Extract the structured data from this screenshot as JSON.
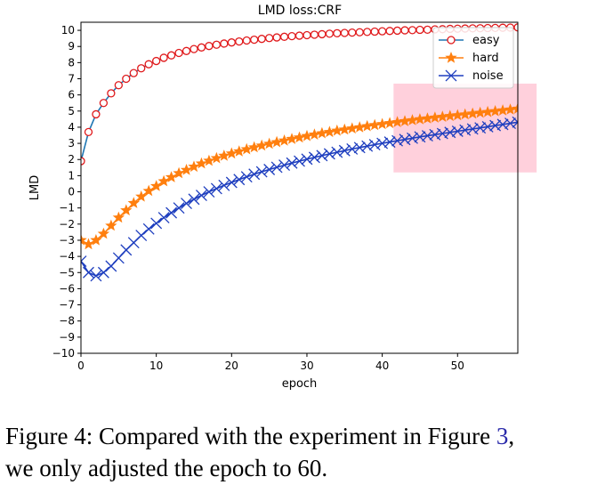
{
  "chart_data": {
    "type": "line",
    "title": "LMD loss:CRF",
    "xlabel": "epoch",
    "ylabel": "LMD",
    "xlim": [
      0,
      58
    ],
    "ylim": [
      -10,
      10.5
    ],
    "xticks": [
      0,
      10,
      20,
      30,
      40,
      50
    ],
    "yticks": [
      -10,
      -9,
      -8,
      -7,
      -6,
      -5,
      -4,
      -3,
      -2,
      -1,
      0,
      1,
      2,
      3,
      4,
      5,
      6,
      7,
      8,
      9,
      10
    ],
    "grid": false,
    "legend_position": "top-right",
    "highlight_region": {
      "x": [
        41.5,
        60.5
      ],
      "y": [
        1.2,
        6.7
      ],
      "color": "#ffd0dc"
    },
    "series": [
      {
        "name": "easy",
        "color": "#e0191b",
        "line_color": "#1f77b4",
        "marker": "circle",
        "values": [
          1.9,
          3.7,
          4.8,
          5.5,
          6.1,
          6.6,
          7.0,
          7.35,
          7.65,
          7.9,
          8.1,
          8.3,
          8.45,
          8.6,
          8.72,
          8.84,
          8.94,
          9.03,
          9.11,
          9.18,
          9.25,
          9.31,
          9.37,
          9.42,
          9.47,
          9.52,
          9.56,
          9.6,
          9.64,
          9.67,
          9.7,
          9.73,
          9.76,
          9.79,
          9.82,
          9.84,
          9.86,
          9.88,
          9.9,
          9.92,
          9.94,
          9.96,
          9.98,
          10.0,
          10.01,
          10.03,
          10.04,
          10.06,
          10.07,
          10.09,
          10.1,
          10.11,
          10.12,
          10.13,
          10.14,
          10.15,
          10.16,
          10.17,
          10.18
        ]
      },
      {
        "name": "hard",
        "color": "#ff7f0e",
        "line_color": "#ff7f0e",
        "marker": "star",
        "values": [
          -3.0,
          -3.25,
          -3.0,
          -2.6,
          -2.1,
          -1.6,
          -1.15,
          -0.7,
          -0.3,
          0.05,
          0.35,
          0.65,
          0.9,
          1.15,
          1.35,
          1.55,
          1.75,
          1.92,
          2.08,
          2.23,
          2.37,
          2.5,
          2.63,
          2.75,
          2.86,
          2.97,
          3.07,
          3.17,
          3.27,
          3.36,
          3.45,
          3.54,
          3.62,
          3.7,
          3.78,
          3.85,
          3.92,
          3.99,
          4.06,
          4.13,
          4.19,
          4.25,
          4.31,
          4.37,
          4.43,
          4.49,
          4.54,
          4.59,
          4.64,
          4.69,
          4.74,
          4.79,
          4.84,
          4.89,
          4.94,
          4.99,
          5.04,
          5.09,
          5.14
        ]
      },
      {
        "name": "noise",
        "color": "#1f3fbf",
        "line_color": "#1f3fbf",
        "marker": "x",
        "values": [
          -4.3,
          -5.0,
          -5.2,
          -5.0,
          -4.6,
          -4.1,
          -3.6,
          -3.15,
          -2.7,
          -2.3,
          -1.95,
          -1.6,
          -1.3,
          -1.0,
          -0.72,
          -0.46,
          -0.22,
          0.0,
          0.2,
          0.4,
          0.58,
          0.76,
          0.93,
          1.09,
          1.24,
          1.38,
          1.52,
          1.65,
          1.78,
          1.9,
          2.02,
          2.13,
          2.24,
          2.35,
          2.45,
          2.55,
          2.65,
          2.74,
          2.83,
          2.92,
          3.0,
          3.08,
          3.16,
          3.24,
          3.32,
          3.4,
          3.47,
          3.54,
          3.61,
          3.68,
          3.75,
          3.82,
          3.89,
          3.96,
          4.03,
          4.1,
          4.17,
          4.24,
          4.31
        ]
      }
    ]
  },
  "caption": {
    "prefix": "Figure 4:  Compared with the experiment in Figure ",
    "ref": "3",
    "suffix": ",",
    "line2": "we only adjusted the epoch to 60."
  }
}
